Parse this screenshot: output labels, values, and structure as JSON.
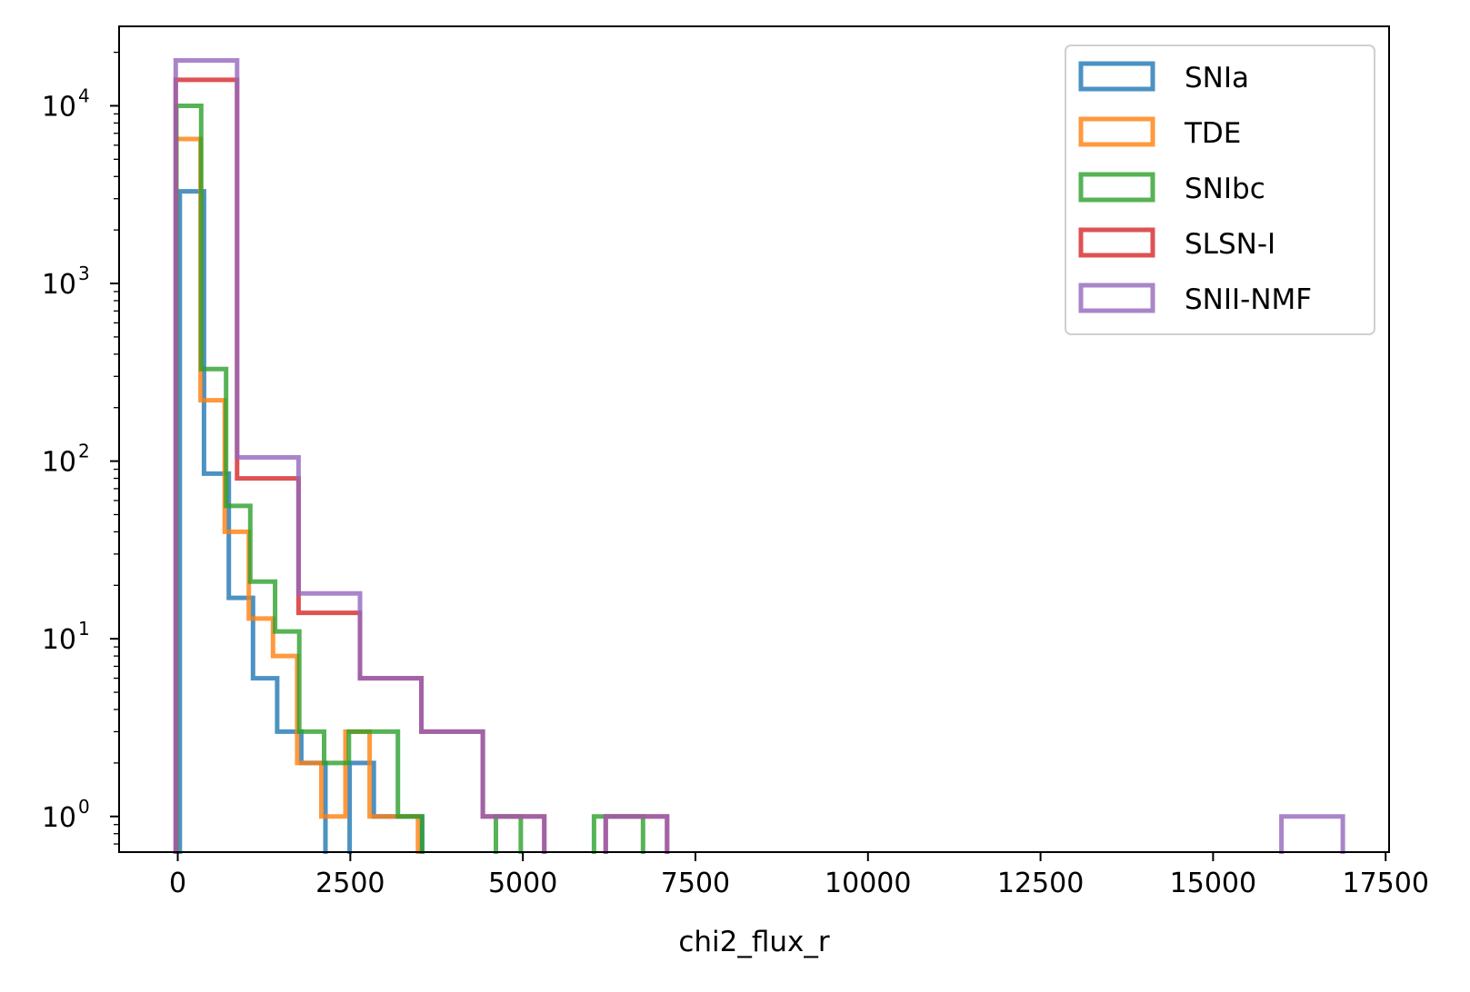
{
  "chart_data": {
    "type": "histogram-step",
    "title": "",
    "xlabel": "chi2_flux_r",
    "ylabel": "",
    "yscale": "log",
    "xlim": [
      -850,
      17550
    ],
    "ylim": [
      0.63,
      28000
    ],
    "x_ticks": [
      0,
      2500,
      5000,
      7500,
      10000,
      12500,
      15000,
      17500
    ],
    "x_tick_labels": [
      "0",
      "2500",
      "5000",
      "7500",
      "10000",
      "12500",
      "15000",
      "17500"
    ],
    "y_ticks": [
      {
        "value": 1,
        "base": "10",
        "exp": "0"
      },
      {
        "value": 10,
        "base": "10",
        "exp": "1"
      },
      {
        "value": 100,
        "base": "10",
        "exp": "2"
      },
      {
        "value": 1000,
        "base": "10",
        "exp": "3"
      },
      {
        "value": 10000,
        "base": "10",
        "exp": "4"
      }
    ],
    "grid": false,
    "legend_position": "top-right",
    "series": [
      {
        "name": "SNIa",
        "color": "#1f77b4",
        "edges": [
          30,
          380,
          740,
          1090,
          1440,
          1790,
          2140,
          2490,
          2840,
          3190,
          3540
        ],
        "counts": [
          3300,
          85,
          17,
          6,
          3,
          2,
          0,
          2,
          1,
          1
        ]
      },
      {
        "name": "TDE",
        "color": "#ff7f0e",
        "edges": [
          -20,
          330,
          680,
          1030,
          1380,
          1730,
          2080,
          2430,
          2780,
          3130,
          3480
        ],
        "counts": [
          6500,
          220,
          40,
          13,
          8,
          2,
          1,
          3,
          1,
          1
        ]
      },
      {
        "name": "SNIbc",
        "color": "#2ca02c",
        "edges": [
          -20,
          340,
          700,
          1050,
          1410,
          1760,
          2120,
          2480,
          2830,
          3190,
          3540,
          3900,
          4260,
          4610,
          4970,
          5320,
          5680,
          6030,
          6390,
          6740
        ],
        "counts": [
          10000,
          330,
          56,
          21,
          11,
          3,
          2,
          3,
          3,
          1,
          0,
          0,
          0,
          1,
          0,
          0,
          0,
          1,
          1
        ]
      },
      {
        "name": "SLSN-I",
        "color": "#d62728",
        "edges": [
          -30,
          860,
          1750,
          2640,
          3530,
          4420,
          5310,
          6200,
          7090
        ],
        "counts": [
          14000,
          80,
          14,
          6,
          3,
          1,
          0,
          1
        ]
      },
      {
        "name": "SNII-NMF",
        "color": "#9467bd",
        "edges": [
          -30,
          860,
          1750,
          2640,
          3530,
          4420,
          5310,
          6200,
          7090,
          7980,
          8870,
          9760,
          10650,
          11540,
          12430,
          13320,
          14210,
          15100,
          15990,
          16880
        ],
        "counts": [
          18000,
          105,
          18,
          6,
          3,
          1,
          0,
          1,
          0,
          0,
          0,
          0,
          0,
          0,
          0,
          0,
          0,
          0,
          1
        ]
      }
    ]
  }
}
